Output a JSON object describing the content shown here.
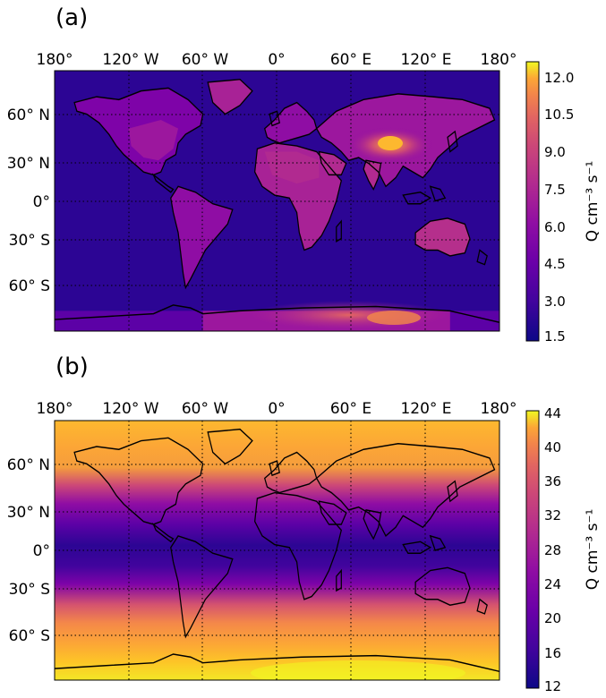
{
  "figure": {
    "panels": [
      {
        "label": "(a)",
        "colorbar_label": "Q cm⁻³ s⁻¹",
        "colorbar_ticks": [
          "1.5",
          "3.0",
          "4.5",
          "6.0",
          "7.5",
          "9.0",
          "10.5",
          "12.0"
        ],
        "lon_labels": [
          "180°",
          "120° W",
          "60° W",
          "0°",
          "60° E",
          "120° E",
          "180°"
        ],
        "lat_labels": [
          "60° N",
          "30° N",
          "0°",
          "30° S",
          "60° S"
        ]
      },
      {
        "label": "(b)",
        "colorbar_label": "Q cm⁻³ s⁻¹",
        "colorbar_ticks": [
          "12",
          "16",
          "20",
          "24",
          "28",
          "32",
          "36",
          "40",
          "44"
        ],
        "lon_labels": [
          "180°",
          "120° W",
          "60° W",
          "0°",
          "60° E",
          "120° E",
          "180°"
        ],
        "lat_labels": [
          "60° N",
          "30° N",
          "0°",
          "30° S",
          "60° S"
        ]
      }
    ]
  },
  "chart_data": [
    {
      "type": "heatmap",
      "title": "(a)",
      "projection": "equirectangular",
      "colormap": "plasma",
      "x_ticks": [
        "180°",
        "120° W",
        "60° W",
        "0°",
        "60° E",
        "120° E",
        "180°"
      ],
      "y_ticks": [
        "60° N",
        "30° N",
        "0°",
        "30° S",
        "60° S"
      ],
      "x_range": [
        -180,
        180
      ],
      "y_range": [
        -90,
        90
      ],
      "colorbar": {
        "label": "Q cm⁻³ s⁻¹",
        "range": [
          1.5,
          12.5
        ],
        "ticks": [
          1.5,
          3.0,
          4.5,
          6.0,
          7.5,
          9.0,
          10.5,
          12.0
        ]
      },
      "approximate_regions": [
        {
          "region": "oceans",
          "value": 2.0
        },
        {
          "region": "Africa / Americas land",
          "value": 5.0
        },
        {
          "region": "central Asia / Tibet max",
          "value": 11.5
        },
        {
          "region": "Antarctica",
          "value": 6.5
        }
      ],
      "grid": true
    },
    {
      "type": "heatmap",
      "title": "(b)",
      "projection": "equirectangular",
      "colormap": "plasma",
      "x_ticks": [
        "180°",
        "120° W",
        "60° W",
        "0°",
        "60° E",
        "120° E",
        "180°"
      ],
      "y_ticks": [
        "60° N",
        "30° N",
        "0°",
        "30° S",
        "60° S"
      ],
      "x_range": [
        -180,
        180
      ],
      "y_range": [
        -90,
        90
      ],
      "colorbar": {
        "label": "Q cm⁻³ s⁻¹",
        "range": [
          12,
          44
        ],
        "ticks": [
          12,
          16,
          20,
          24,
          28,
          32,
          36,
          40,
          44
        ]
      },
      "latitude_profile": {
        "lat": [
          90,
          75,
          60,
          45,
          30,
          15,
          0,
          -15,
          -30,
          -45,
          -60,
          -75,
          -90
        ],
        "value": [
          38,
          37,
          34,
          26,
          20,
          16,
          14,
          16,
          20,
          27,
          35,
          40,
          43
        ]
      },
      "grid": true
    }
  ]
}
